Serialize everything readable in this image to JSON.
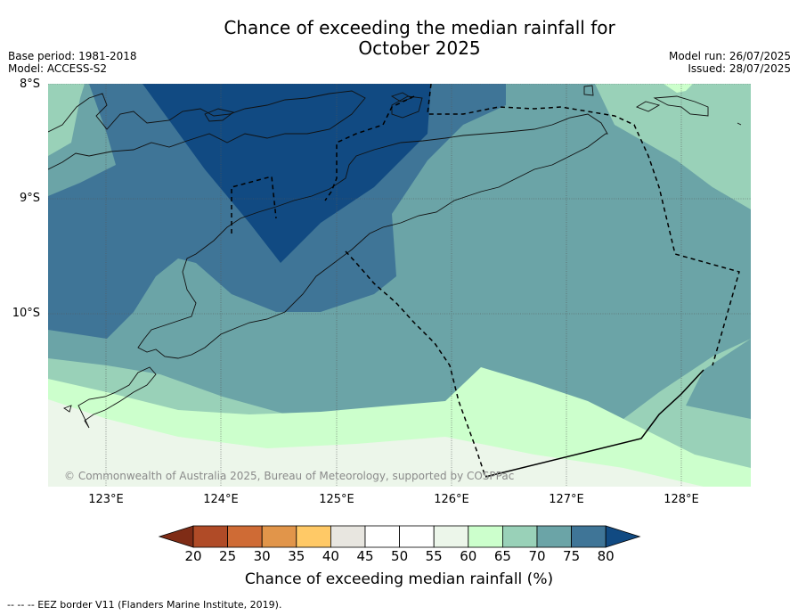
{
  "title": "Chance of exceeding the median rainfall for October 2025",
  "title_lines": [
    "Chance of exceeding the median rainfall for",
    "October 2025"
  ],
  "meta": {
    "base_period": "Base period: 1981-2018",
    "model": "Model: ACCESS-S2",
    "model_run": "Model run: 26/07/2025",
    "issued": "Issued: 28/07/2025"
  },
  "map": {
    "lat_labels": [
      "8°S",
      "9°S",
      "10°S"
    ],
    "lon_labels": [
      "123°E",
      "124°E",
      "125°E",
      "126°E",
      "127°E",
      "128°E"
    ],
    "extent": {
      "lon": [
        122.5,
        128.6
      ],
      "lat": [
        -8.0,
        -11.5
      ]
    },
    "copyright": "© Commonwealth of Australia 2025, Bureau of Meteorology, supported by COSPPac",
    "gridlines": true
  },
  "colorbar": {
    "title": "Chance of exceeding median rainfall (%)",
    "ticks": [
      "20",
      "25",
      "30",
      "35",
      "40",
      "45",
      "50",
      "55",
      "60",
      "65",
      "70",
      "75",
      "80"
    ],
    "colors": [
      "#7f2c16",
      "#b04b27",
      "#cf6b35",
      "#e1954a",
      "#ffc966",
      "#e8e6e0",
      "#ffffff",
      "#ffffff",
      "#ecf6ea",
      "#ccffcc",
      "#99d1b8",
      "#6ba4a7",
      "#3f7597",
      "#114a82"
    ]
  },
  "footnote": "--  --  -- EEZ border V11 (Flanders Marine Institute, 2019)."
}
